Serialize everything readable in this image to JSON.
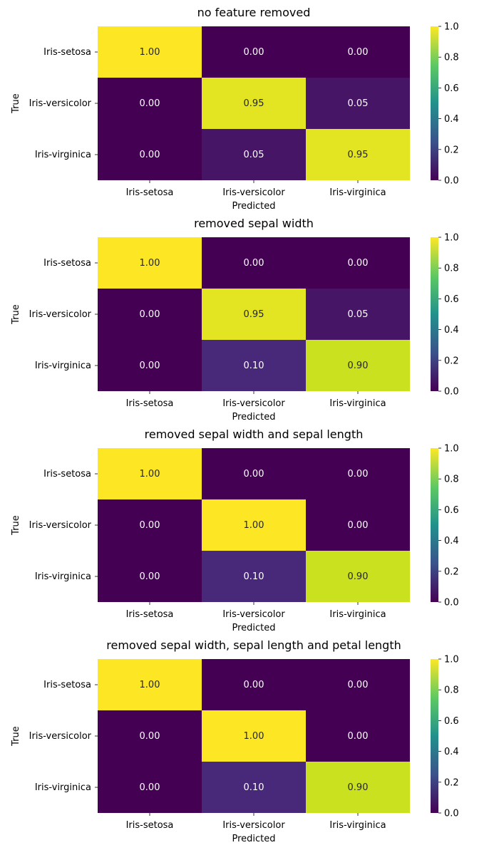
{
  "figure": {
    "colormap": "viridis",
    "chart_data": [
      {
        "type": "heatmap",
        "title": "no feature removed",
        "xlabel": "Predicted",
        "ylabel": "True",
        "x_categories": [
          "Iris-setosa",
          "Iris-versicolor",
          "Iris-virginica"
        ],
        "y_categories": [
          "Iris-setosa",
          "Iris-versicolor",
          "Iris-virginica"
        ],
        "values": [
          [
            1.0,
            0.0,
            0.0
          ],
          [
            0.0,
            0.95,
            0.05
          ],
          [
            0.0,
            0.05,
            0.95
          ]
        ],
        "cell_labels": [
          [
            "1.00",
            "0.00",
            "0.00"
          ],
          [
            "0.00",
            "0.95",
            "0.05"
          ],
          [
            "0.00",
            "0.05",
            "0.95"
          ]
        ],
        "colorbar": {
          "range": [
            0.0,
            1.0
          ],
          "ticks": [
            "0.0",
            "0.2",
            "0.4",
            "0.6",
            "0.8",
            "1.0"
          ]
        }
      },
      {
        "type": "heatmap",
        "title": "removed sepal width",
        "xlabel": "Predicted",
        "ylabel": "True",
        "x_categories": [
          "Iris-setosa",
          "Iris-versicolor",
          "Iris-virginica"
        ],
        "y_categories": [
          "Iris-setosa",
          "Iris-versicolor",
          "Iris-virginica"
        ],
        "values": [
          [
            1.0,
            0.0,
            0.0
          ],
          [
            0.0,
            0.95,
            0.05
          ],
          [
            0.0,
            0.1,
            0.9
          ]
        ],
        "cell_labels": [
          [
            "1.00",
            "0.00",
            "0.00"
          ],
          [
            "0.00",
            "0.95",
            "0.05"
          ],
          [
            "0.00",
            "0.10",
            "0.90"
          ]
        ],
        "colorbar": {
          "range": [
            0.0,
            1.0
          ],
          "ticks": [
            "0.0",
            "0.2",
            "0.4",
            "0.6",
            "0.8",
            "1.0"
          ]
        }
      },
      {
        "type": "heatmap",
        "title": "removed sepal width and sepal length",
        "xlabel": "Predicted",
        "ylabel": "True",
        "x_categories": [
          "Iris-setosa",
          "Iris-versicolor",
          "Iris-virginica"
        ],
        "y_categories": [
          "Iris-setosa",
          "Iris-versicolor",
          "Iris-virginica"
        ],
        "values": [
          [
            1.0,
            0.0,
            0.0
          ],
          [
            0.0,
            1.0,
            0.0
          ],
          [
            0.0,
            0.1,
            0.9
          ]
        ],
        "cell_labels": [
          [
            "1.00",
            "0.00",
            "0.00"
          ],
          [
            "0.00",
            "1.00",
            "0.00"
          ],
          [
            "0.00",
            "0.10",
            "0.90"
          ]
        ],
        "colorbar": {
          "range": [
            0.0,
            1.0
          ],
          "ticks": [
            "0.0",
            "0.2",
            "0.4",
            "0.6",
            "0.8",
            "1.0"
          ]
        }
      },
      {
        "type": "heatmap",
        "title": "removed sepal width, sepal length and petal length",
        "xlabel": "Predicted",
        "ylabel": "True",
        "x_categories": [
          "Iris-setosa",
          "Iris-versicolor",
          "Iris-virginica"
        ],
        "y_categories": [
          "Iris-setosa",
          "Iris-versicolor",
          "Iris-virginica"
        ],
        "values": [
          [
            1.0,
            0.0,
            0.0
          ],
          [
            0.0,
            1.0,
            0.0
          ],
          [
            0.0,
            0.1,
            0.9
          ]
        ],
        "cell_labels": [
          [
            "1.00",
            "0.00",
            "0.00"
          ],
          [
            "0.00",
            "1.00",
            "0.00"
          ],
          [
            "0.00",
            "0.10",
            "0.90"
          ]
        ],
        "colorbar": {
          "range": [
            0.0,
            1.0
          ],
          "ticks": [
            "0.0",
            "0.2",
            "0.4",
            "0.6",
            "0.8",
            "1.0"
          ]
        }
      }
    ]
  }
}
